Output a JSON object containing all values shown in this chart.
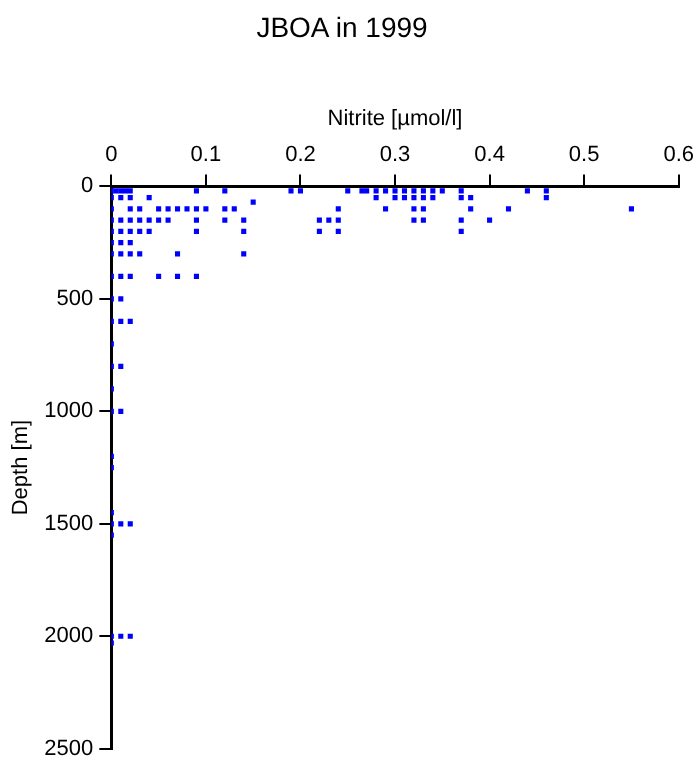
{
  "chart_data": {
    "type": "scatter",
    "title": "JBOA in 1999",
    "xlabel": "Nitrite [µmol/l]",
    "ylabel": "Depth [m]",
    "xlim": [
      0,
      0.6
    ],
    "xticks": [
      0,
      0.1,
      0.2,
      0.3,
      0.4,
      0.5,
      0.6
    ],
    "ylim": [
      2500,
      0
    ],
    "yticks": [
      0,
      500,
      1000,
      1500,
      2000,
      2500
    ],
    "grid": false,
    "legend": false,
    "marker": "square",
    "series": [
      {
        "color": "#0000ff",
        "x": [
          0,
          0.005,
          0.01,
          0.015,
          0.02,
          0.09,
          0.12,
          0.19,
          0.2,
          0.25,
          0.265,
          0.27,
          0.28,
          0.29,
          0.3,
          0.31,
          0.32,
          0.33,
          0.34,
          0.35,
          0.37,
          0.44,
          0.46,
          0,
          0.01,
          0.02,
          0.04,
          0.28,
          0.3,
          0.31,
          0.32,
          0.33,
          0.34,
          0.37,
          0.38,
          0.46,
          0.15,
          0,
          0.02,
          0.03,
          0.05,
          0.06,
          0.07,
          0.08,
          0.09,
          0.1,
          0.12,
          0.13,
          0.24,
          0.29,
          0.32,
          0.33,
          0.38,
          0.42,
          0.55,
          0,
          0.01,
          0.02,
          0.03,
          0.04,
          0.05,
          0.06,
          0.09,
          0.12,
          0.14,
          0.22,
          0.23,
          0.24,
          0.32,
          0.33,
          0.37,
          0.4,
          0,
          0.01,
          0.02,
          0.03,
          0.04,
          0.09,
          0.14,
          0.22,
          0.24,
          0.37,
          0,
          0.01,
          0.02,
          0,
          0.01,
          0.02,
          0.03,
          0.07,
          0.14,
          0,
          0.01,
          0.02,
          0.05,
          0.07,
          0.09,
          0,
          0.01,
          0,
          0.01,
          0.02,
          0,
          0,
          0.01,
          0,
          0,
          0.01,
          0,
          0,
          0,
          0,
          0.01,
          0.02,
          0,
          0,
          0.01,
          0.02,
          0
        ],
        "values": [
          20,
          20,
          20,
          20,
          20,
          20,
          20,
          20,
          20,
          20,
          20,
          20,
          20,
          20,
          20,
          20,
          20,
          20,
          20,
          20,
          20,
          20,
          20,
          50,
          50,
          50,
          50,
          50,
          50,
          50,
          50,
          50,
          50,
          50,
          50,
          50,
          70,
          100,
          100,
          100,
          100,
          100,
          100,
          100,
          100,
          100,
          100,
          100,
          100,
          100,
          100,
          100,
          100,
          100,
          100,
          150,
          150,
          150,
          150,
          150,
          150,
          150,
          150,
          150,
          150,
          150,
          150,
          150,
          150,
          150,
          150,
          150,
          200,
          200,
          200,
          200,
          200,
          200,
          200,
          200,
          200,
          200,
          250,
          250,
          250,
          300,
          300,
          300,
          300,
          300,
          300,
          400,
          400,
          400,
          400,
          400,
          400,
          500,
          500,
          600,
          600,
          600,
          700,
          800,
          800,
          900,
          1000,
          1000,
          1200,
          1250,
          1450,
          1500,
          1500,
          1500,
          1550,
          2000,
          2000,
          2000,
          2030
        ]
      }
    ]
  }
}
